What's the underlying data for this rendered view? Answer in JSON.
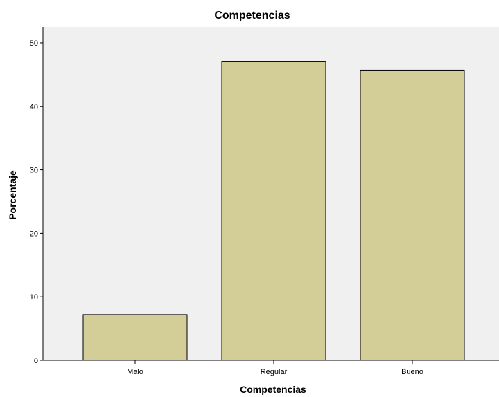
{
  "chart_data": {
    "type": "bar",
    "title": "Competencias",
    "xlabel": "Competencias",
    "ylabel": "Porcentaje",
    "categories": [
      "Malo",
      "Regular",
      "Bueno"
    ],
    "values": [
      7.2,
      47.1,
      45.7
    ],
    "ylim": [
      0,
      52.5
    ],
    "yticks": [
      0,
      10,
      20,
      30,
      40,
      50
    ],
    "ytick_labels": [
      "0",
      "10",
      "20",
      "30",
      "40",
      "50"
    ],
    "grid": false,
    "legend": "none",
    "colors": {
      "plot_background": "#f0f0f0",
      "bar_fill": "#d3ce98",
      "bar_stroke": "#000000",
      "axis": "#000000"
    }
  }
}
